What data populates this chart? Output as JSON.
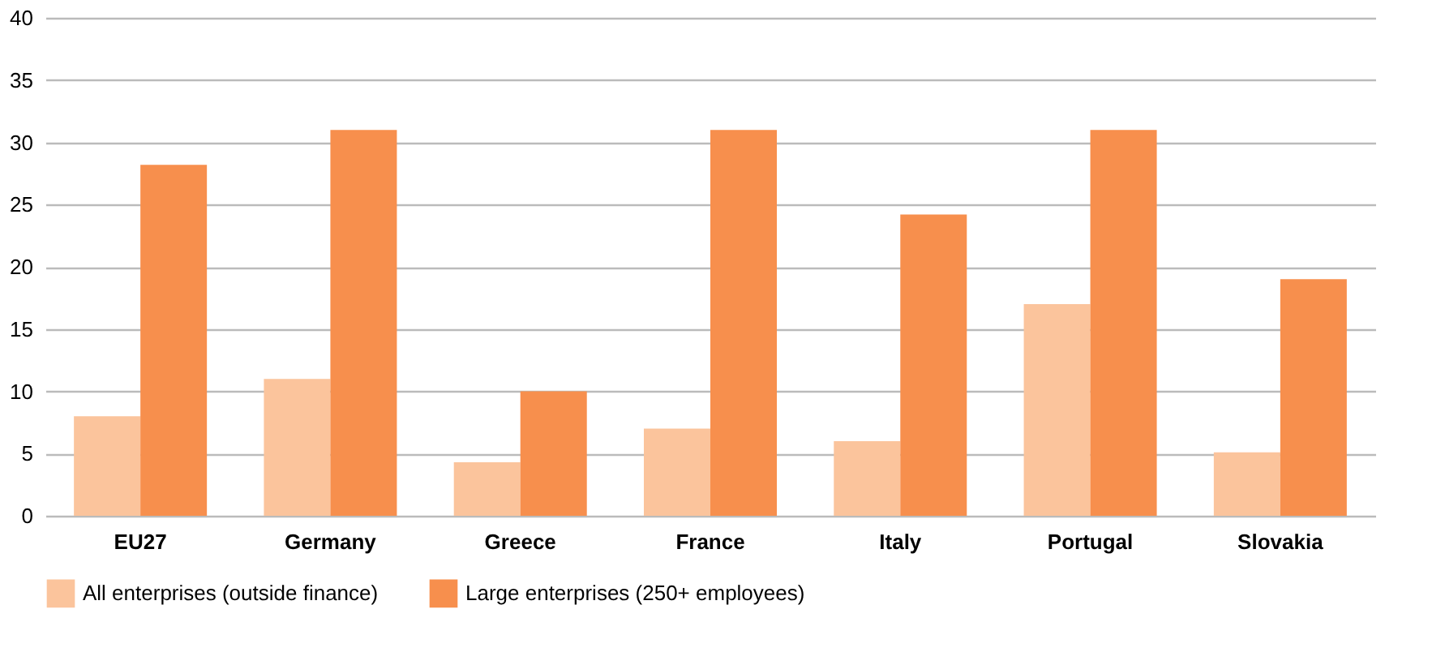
{
  "chart_data": {
    "type": "bar",
    "categories": [
      "EU27",
      "Germany",
      "Greece",
      "France",
      "Italy",
      "Portugal",
      "Slovakia"
    ],
    "series": [
      {
        "name": "All enterprises (outside finance)",
        "color": "#fbc49c",
        "values": [
          8,
          11,
          4.3,
          7,
          6,
          17,
          5.1
        ]
      },
      {
        "name": "Large enterprises (250+ employees)",
        "color": "#f78f4d",
        "values": [
          28.2,
          31,
          10,
          31,
          24.2,
          31,
          19
        ]
      }
    ],
    "ylim": [
      0,
      40
    ],
    "yticks": [
      0,
      5,
      10,
      15,
      20,
      25,
      30,
      35,
      40
    ],
    "grid": "y",
    "legend": "bottom"
  }
}
